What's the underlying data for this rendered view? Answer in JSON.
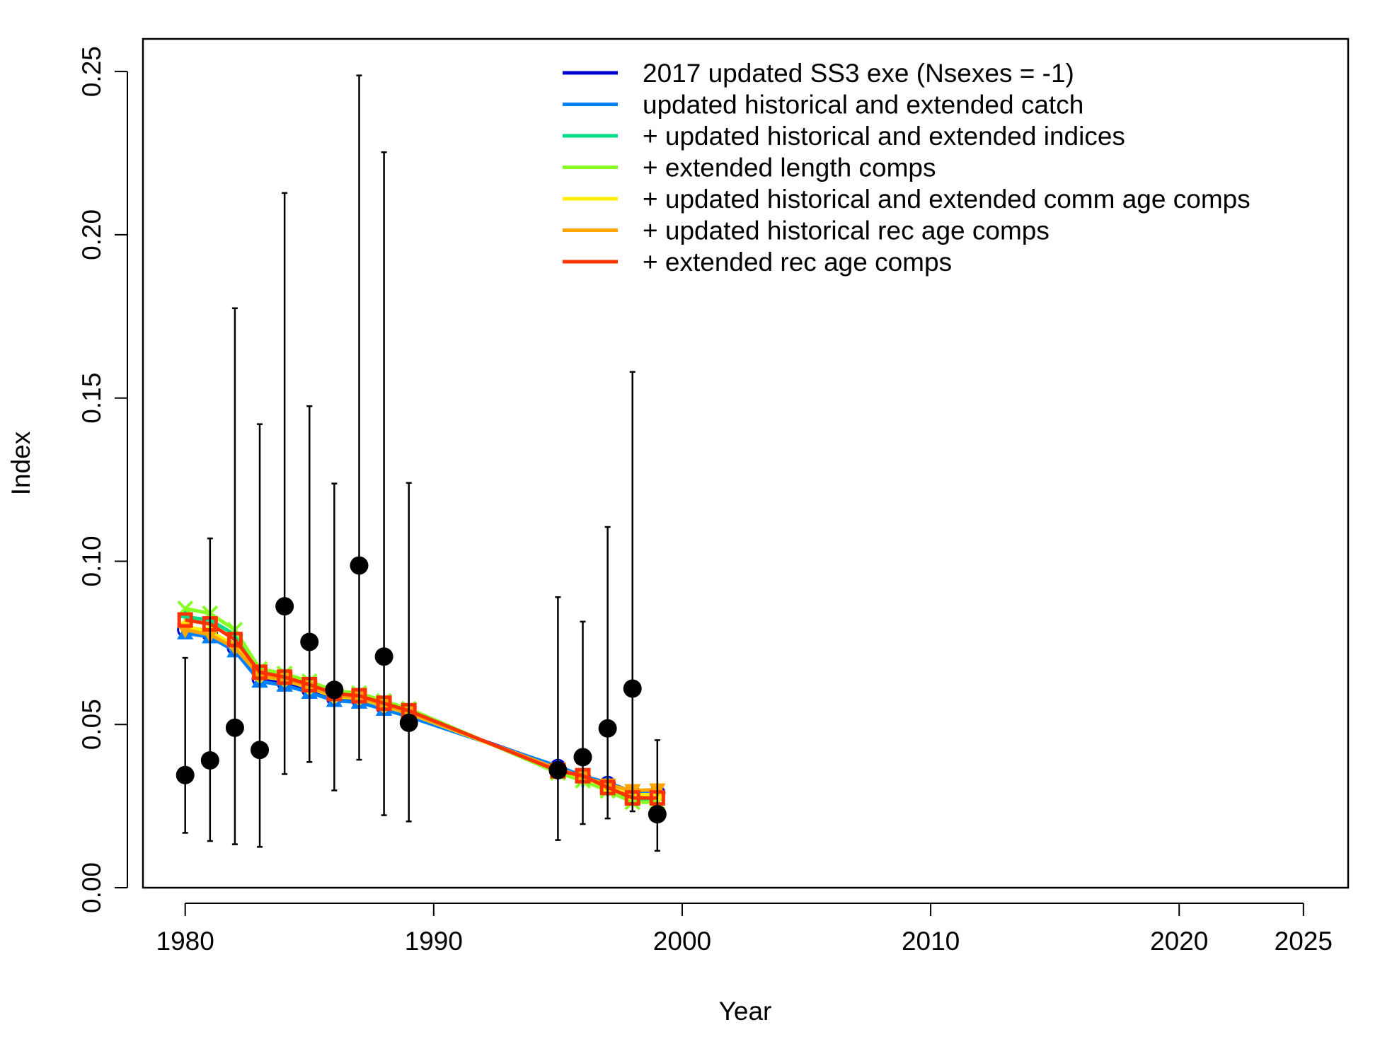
{
  "chart_data": {
    "type": "line",
    "title": "",
    "xlabel": "Year",
    "ylabel": "Index",
    "xlim": [
      1978.3,
      2026.8
    ],
    "ylim": [
      0,
      0.26
    ],
    "x_ticks": [
      1980,
      1990,
      2000,
      2010,
      2020,
      2025
    ],
    "y_ticks": [
      0.0,
      0.05,
      0.1,
      0.15,
      0.2,
      0.25
    ],
    "y_tick_labels": [
      "0.00",
      "0.05",
      "0.10",
      "0.15",
      "0.20",
      "0.25"
    ],
    "legend_position": "top-right",
    "observed": {
      "marker": "filled black circle",
      "color": "#000000",
      "x": [
        1980,
        1981,
        1982,
        1983,
        1984,
        1985,
        1986,
        1987,
        1988,
        1989,
        1995,
        1996,
        1997,
        1998,
        1999
      ],
      "y": [
        0.0345,
        0.039,
        0.049,
        0.0422,
        0.0862,
        0.0753,
        0.0606,
        0.0987,
        0.0708,
        0.0505,
        0.036,
        0.04,
        0.0488,
        0.061,
        0.0225
      ],
      "lower": [
        0.0168,
        0.0143,
        0.0133,
        0.0125,
        0.0348,
        0.0385,
        0.0298,
        0.0392,
        0.0222,
        0.0203,
        0.0146,
        0.0195,
        0.0212,
        0.0234,
        0.0113
      ],
      "upper": [
        0.0704,
        0.107,
        0.1775,
        0.142,
        0.2128,
        0.1475,
        0.1238,
        0.2488,
        0.2253,
        0.124,
        0.089,
        0.0815,
        0.1105,
        0.158,
        0.0452
      ]
    },
    "series": [
      {
        "name": "2017 updated SS3 exe (Nsexes = -1)",
        "color": "#0000CC",
        "marker": "circle",
        "x": [
          1980,
          1981,
          1982,
          1983,
          1984,
          1985,
          1986,
          1987,
          1988,
          1989,
          1995,
          1996,
          1997,
          1998,
          1999
        ],
        "values": [
          0.079,
          0.0776,
          0.0735,
          0.064,
          0.0628,
          0.0606,
          0.058,
          0.0576,
          0.0553,
          0.053,
          0.037,
          0.034,
          0.0318,
          0.029,
          0.029
        ]
      },
      {
        "name": "updated historical and extended catch",
        "color": "#0080FF",
        "marker": "triangle",
        "x": [
          1980,
          1981,
          1982,
          1983,
          1984,
          1985,
          1986,
          1987,
          1988,
          1989,
          1995,
          1996,
          1997,
          1998,
          1999
        ],
        "values": [
          0.078,
          0.0768,
          0.0725,
          0.0632,
          0.062,
          0.0598,
          0.0573,
          0.0568,
          0.0546,
          0.0524,
          0.0372,
          0.0342,
          0.0322,
          0.0294,
          0.0294
        ]
      },
      {
        "name": "+ updated historical and extended indices",
        "color": "#00DD88",
        "marker": "plus",
        "x": [
          1980,
          1981,
          1982,
          1983,
          1984,
          1985,
          1986,
          1987,
          1988,
          1989,
          1995,
          1996,
          1997,
          1998,
          1999
        ],
        "values": [
          0.083,
          0.082,
          0.0775,
          0.066,
          0.0648,
          0.0625,
          0.0598,
          0.059,
          0.0566,
          0.0543,
          0.0355,
          0.033,
          0.0302,
          0.0272,
          0.0272
        ]
      },
      {
        "name": "+ extended length comps",
        "color": "#88FF22",
        "marker": "x",
        "x": [
          1980,
          1981,
          1982,
          1983,
          1984,
          1985,
          1986,
          1987,
          1988,
          1989,
          1995,
          1996,
          1997,
          1998,
          1999
        ],
        "values": [
          0.0855,
          0.084,
          0.079,
          0.067,
          0.0656,
          0.0632,
          0.0603,
          0.0596,
          0.0572,
          0.0548,
          0.0352,
          0.0328,
          0.0297,
          0.0262,
          0.0262
        ]
      },
      {
        "name": "+ updated historical and extended comm age comps",
        "color": "#FFEE00",
        "marker": "diamond",
        "x": [
          1980,
          1981,
          1982,
          1983,
          1984,
          1985,
          1986,
          1987,
          1988,
          1989,
          1995,
          1996,
          1997,
          1998,
          1999
        ],
        "values": [
          0.08,
          0.0785,
          0.0742,
          0.0648,
          0.0636,
          0.0612,
          0.0585,
          0.058,
          0.0556,
          0.0534,
          0.0362,
          0.0336,
          0.031,
          0.0285,
          0.0285
        ]
      },
      {
        "name": "+ updated historical rec age comps",
        "color": "#FFA500",
        "marker": "inverted-triangle",
        "x": [
          1980,
          1981,
          1982,
          1983,
          1984,
          1985,
          1986,
          1987,
          1988,
          1989,
          1995,
          1996,
          1997,
          1998,
          1999
        ],
        "values": [
          0.079,
          0.0775,
          0.0735,
          0.065,
          0.0638,
          0.0614,
          0.0588,
          0.0582,
          0.0558,
          0.0535,
          0.0364,
          0.034,
          0.0315,
          0.0298,
          0.03
        ]
      },
      {
        "name": "+ extended rec age comps",
        "color": "#FF3300",
        "marker": "square",
        "x": [
          1980,
          1981,
          1982,
          1983,
          1984,
          1985,
          1986,
          1987,
          1988,
          1989,
          1995,
          1996,
          1997,
          1998,
          1999
        ],
        "values": [
          0.082,
          0.0808,
          0.076,
          0.066,
          0.0645,
          0.0622,
          0.0595,
          0.0588,
          0.0565,
          0.0542,
          0.0358,
          0.0343,
          0.0307,
          0.0275,
          0.0275
        ]
      }
    ]
  }
}
